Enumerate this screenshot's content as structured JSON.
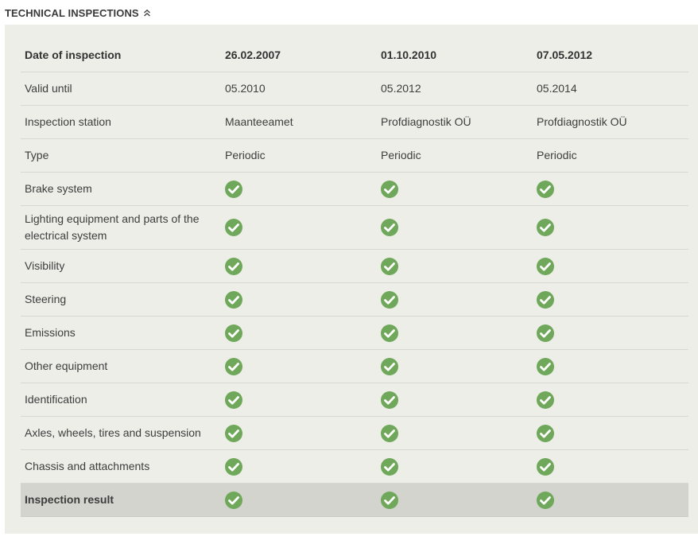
{
  "section": {
    "title": "TECHNICAL INSPECTIONS",
    "toggle_icon": "double-chevron-up-icon"
  },
  "table": {
    "header": {
      "label": "Date of inspection",
      "dates": [
        "26.02.2007",
        "01.10.2010",
        "07.05.2012"
      ]
    },
    "rows": [
      {
        "label": "Valid until",
        "values": [
          "05.2010",
          "05.2012",
          "05.2014"
        ]
      },
      {
        "label": "Inspection station",
        "values": [
          "Maanteeamet",
          "Profdiagnostik OÜ",
          "Profdiagnostik OÜ"
        ]
      },
      {
        "label": "Type",
        "values": [
          "Periodic",
          "Periodic",
          "Periodic"
        ]
      }
    ],
    "checks": [
      {
        "label": "Brake system",
        "status": [
          "passed",
          "passed",
          "passed"
        ]
      },
      {
        "label": "Lighting equipment and parts of the electrical system",
        "status": [
          "passed",
          "passed",
          "passed"
        ]
      },
      {
        "label": "Visibility",
        "status": [
          "passed",
          "passed",
          "passed"
        ]
      },
      {
        "label": "Steering",
        "status": [
          "passed",
          "passed",
          "passed"
        ]
      },
      {
        "label": "Emissions",
        "status": [
          "passed",
          "passed",
          "passed"
        ]
      },
      {
        "label": "Other equipment",
        "status": [
          "passed",
          "passed",
          "passed"
        ]
      },
      {
        "label": "Identification",
        "status": [
          "passed",
          "passed",
          "passed"
        ]
      },
      {
        "label": "Axles, wheels, tires and suspension",
        "status": [
          "passed",
          "passed",
          "passed"
        ]
      },
      {
        "label": "Chassis and attachments",
        "status": [
          "passed",
          "passed",
          "passed"
        ]
      }
    ],
    "result": {
      "label": "Inspection result",
      "status": [
        "passed",
        "passed",
        "passed"
      ]
    },
    "check_icon": "check-circle-icon",
    "colors": {
      "check_fill": "#6fa85a",
      "panel_bg": "#eceee7",
      "result_row_bg": "#d2d4cd"
    }
  }
}
